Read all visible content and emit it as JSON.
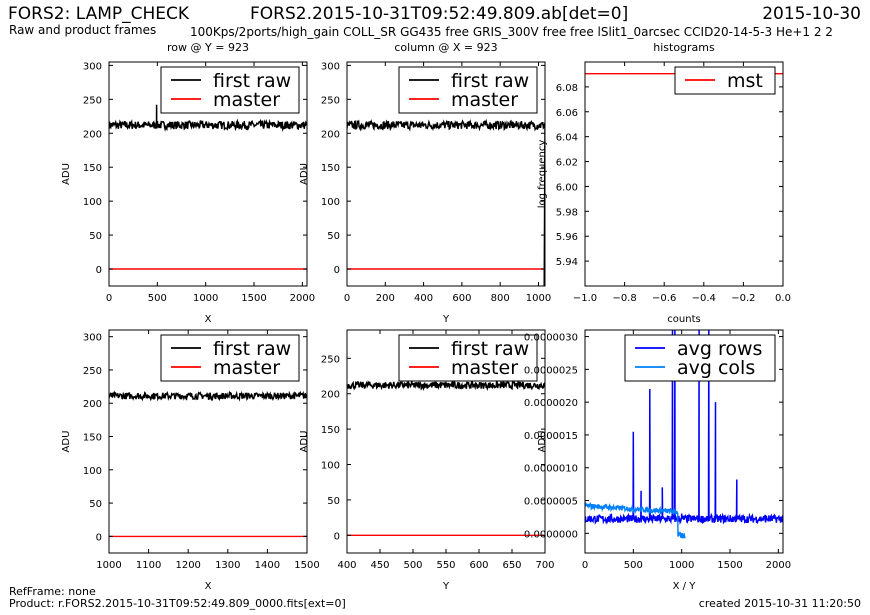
{
  "header": {
    "title": "FORS2: LAMP_CHECK",
    "subtitle": "Raw and product frames",
    "file_title": "FORS2.2015-10-31T09:52:49.809.ab[det=0]",
    "config": "100Kps/2ports/high_gain COLL_SR GG435 free GRIS_300V free free lSlit1_0arcsec CCID20-14-5-3 He+1 2 2",
    "date": "2015-10-30"
  },
  "footer": {
    "ref_frame": "RefFrame: none",
    "product": "Product: r.FORS2.2015-10-31T09:52:49.809_0000.fits[ext=0]",
    "created": "created 2015-10-31 11:20:50"
  },
  "colors": {
    "first_raw": "#000000",
    "master": "#ff0000",
    "mst": "#ff0000",
    "avg_rows": "#0000ff",
    "avg_cols": "#0080ff"
  },
  "chart_data": [
    {
      "type": "line",
      "title": "row @ Y = 923",
      "xlabel": "X",
      "ylabel": "ADU",
      "xlim": [
        0,
        2048
      ],
      "ylim": [
        -25,
        305
      ],
      "xticks": [
        "0",
        "500",
        "1000",
        "1500",
        "2000"
      ],
      "yticks": [
        "0",
        "50",
        "100",
        "150",
        "200",
        "250",
        "300"
      ],
      "legend_position": "top-right",
      "series": [
        {
          "name": "first raw",
          "color_key": "first_raw",
          "level": 212,
          "noise": 6,
          "spikes": [
            [
              492,
              242
            ]
          ]
        },
        {
          "name": "master",
          "color_key": "master",
          "level": 0,
          "noise": 0
        }
      ]
    },
    {
      "type": "line",
      "title": "column @ X = 923",
      "xlabel": "Y",
      "ylabel": "ADU",
      "xlim": [
        0,
        1034
      ],
      "ylim": [
        -25,
        305
      ],
      "xticks": [
        "0",
        "200",
        "400",
        "600",
        "800",
        "1000"
      ],
      "yticks": [
        "0",
        "50",
        "100",
        "150",
        "200",
        "250",
        "300"
      ],
      "legend_position": "top-right",
      "series": [
        {
          "name": "first raw",
          "color_key": "first_raw",
          "level": 212,
          "noise": 6,
          "spikes": [],
          "drop_at": 1030
        },
        {
          "name": "master",
          "color_key": "master",
          "level": 0,
          "noise": 0
        }
      ]
    },
    {
      "type": "line",
      "title": "histograms",
      "xlabel": "counts",
      "ylabel": "log frequency",
      "xlim": [
        -1.0,
        0.0
      ],
      "ylim": [
        5.92,
        6.1
      ],
      "xticks": [
        "−1.0",
        "−0.8",
        "−0.6",
        "−0.4",
        "−0.2",
        "0.0"
      ],
      "yticks": [
        "5.94",
        "5.96",
        "5.98",
        "6.00",
        "6.02",
        "6.04",
        "6.06",
        "6.08"
      ],
      "legend_position": "top-right",
      "series": [
        {
          "name": "mst",
          "color_key": "mst",
          "level": 6.0906,
          "noise": 0
        }
      ]
    },
    {
      "type": "line",
      "title": "",
      "xlabel": "X",
      "ylabel": "ADU",
      "xlim": [
        1000,
        1500
      ],
      "ylim": [
        -25,
        310
      ],
      "xticks": [
        "1000",
        "1100",
        "1200",
        "1300",
        "1400",
        "1500"
      ],
      "yticks": [
        "0",
        "50",
        "100",
        "150",
        "200",
        "250",
        "300"
      ],
      "legend_position": "top-right",
      "series": [
        {
          "name": "first raw",
          "color_key": "first_raw",
          "level": 211,
          "noise": 5,
          "spikes": []
        },
        {
          "name": "master",
          "color_key": "master",
          "level": 0,
          "noise": 0
        }
      ]
    },
    {
      "type": "line",
      "title": "",
      "xlabel": "Y",
      "ylabel": "ADU",
      "xlim": [
        400,
        700
      ],
      "ylim": [
        -25,
        290
      ],
      "xticks": [
        "400",
        "450",
        "500",
        "550",
        "600",
        "650",
        "700"
      ],
      "yticks": [
        "0",
        "50",
        "100",
        "150",
        "200",
        "250"
      ],
      "legend_position": "top-right",
      "series": [
        {
          "name": "first raw",
          "color_key": "first_raw",
          "level": 212,
          "noise": 5,
          "spikes": []
        },
        {
          "name": "master",
          "color_key": "master",
          "level": 0,
          "noise": 0
        }
      ]
    },
    {
      "type": "line",
      "title": "",
      "xlabel": "X / Y",
      "ylabel": "ADU",
      "xlim": [
        0,
        2048
      ],
      "ylim": [
        -3e-07,
        3.1e-06
      ],
      "xticks": [
        "0",
        "500",
        "1000",
        "1500",
        "2000"
      ],
      "yticks": [
        "0.0000000",
        "0.0000005",
        "0.0000010",
        "0.0000015",
        "0.0000020",
        "0.0000025",
        "0.0000030"
      ],
      "legend_position": "top-right",
      "series": [
        {
          "name": "avg rows",
          "color_key": "avg_rows",
          "base": 2.2e-07,
          "peaks": [
            [
              500,
              1.55e-06
            ],
            [
              580,
              6.5e-07
            ],
            [
              670,
              2.2e-06
            ],
            [
              800,
              7e-07
            ],
            [
              905,
              3.1e-06
            ],
            [
              930,
              3.1e-06
            ],
            [
              1000,
              3e-07
            ],
            [
              1180,
              3.1e-06
            ],
            [
              1280,
              3.1e-06
            ],
            [
              1350,
              2e-06
            ],
            [
              1570,
              8.2e-07
            ]
          ]
        },
        {
          "name": "avg cols",
          "color_key": "avg_cols",
          "base": 4.2e-07,
          "x_end": 1034
        }
      ]
    }
  ]
}
